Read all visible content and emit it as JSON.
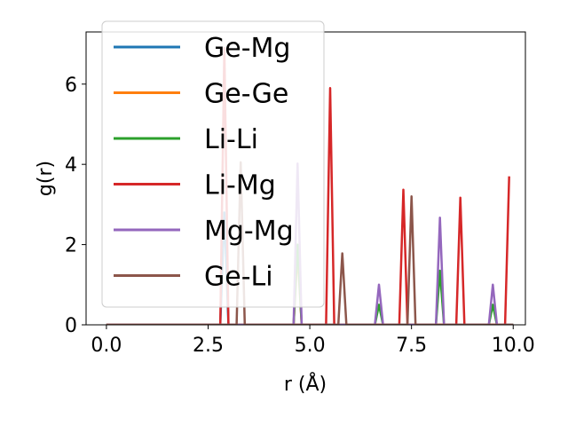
{
  "chart_data": {
    "type": "line",
    "xlabel": "r (Å)",
    "ylabel": "g(r)",
    "xlim": [
      -0.5,
      10.3
    ],
    "ylim": [
      0,
      7.3
    ],
    "xticks": [
      0.0,
      2.5,
      5.0,
      7.5,
      10.0
    ],
    "xtick_labels": [
      "0.0",
      "2.5",
      "5.0",
      "7.5",
      "10.0"
    ],
    "yticks": [
      0,
      2,
      4,
      6
    ],
    "ytick_labels": [
      "0",
      "2",
      "4",
      "6"
    ],
    "grid": false,
    "legend_position": "upper-left",
    "series": [
      {
        "name": "Ge-Mg",
        "color": "#1f77b4",
        "x": [
          0,
          2.8,
          2.9,
          3.0,
          10.0
        ],
        "y": [
          0,
          0,
          2.8,
          0,
          0
        ]
      },
      {
        "name": "Ge-Ge",
        "color": "#ff7f0e",
        "x": [
          0,
          4.6,
          4.7,
          4.8,
          10.0
        ],
        "y": [
          0,
          0,
          1.8,
          0,
          0
        ]
      },
      {
        "name": "Li-Li",
        "color": "#2ca02c",
        "x": [
          0,
          4.6,
          4.7,
          4.8,
          6.6,
          6.7,
          6.8,
          8.1,
          8.2,
          8.3,
          9.4,
          9.5,
          9.6,
          10.0
        ],
        "y": [
          0,
          0,
          2.0,
          0,
          0,
          0.5,
          0,
          0,
          1.35,
          0,
          0,
          0.5,
          0,
          0
        ]
      },
      {
        "name": "Li-Mg",
        "color": "#d62728",
        "x": [
          0,
          2.8,
          2.9,
          3.0,
          5.4,
          5.5,
          5.6,
          7.2,
          7.3,
          7.4,
          8.6,
          8.7,
          8.8,
          9.8,
          9.9
        ],
        "y": [
          0,
          0,
          6.9,
          0,
          0,
          5.9,
          0,
          0,
          3.37,
          0,
          0,
          3.17,
          0,
          0,
          3.7
        ]
      },
      {
        "name": "Mg-Mg",
        "color": "#9467bd",
        "x": [
          0,
          4.6,
          4.7,
          4.8,
          6.6,
          6.7,
          6.8,
          8.1,
          8.2,
          8.3,
          9.4,
          9.5,
          9.6,
          10.0
        ],
        "y": [
          0,
          0,
          4.02,
          0,
          0,
          1.0,
          0,
          0,
          2.67,
          0,
          0,
          1.0,
          0,
          0
        ]
      },
      {
        "name": "Ge-Li",
        "color": "#8c564b",
        "x": [
          0,
          3.2,
          3.3,
          3.4,
          5.7,
          5.8,
          5.9,
          7.4,
          7.5,
          7.6,
          10.0
        ],
        "y": [
          0,
          0,
          4.05,
          0,
          0,
          1.78,
          0,
          0,
          3.2,
          0,
          0
        ]
      }
    ]
  }
}
